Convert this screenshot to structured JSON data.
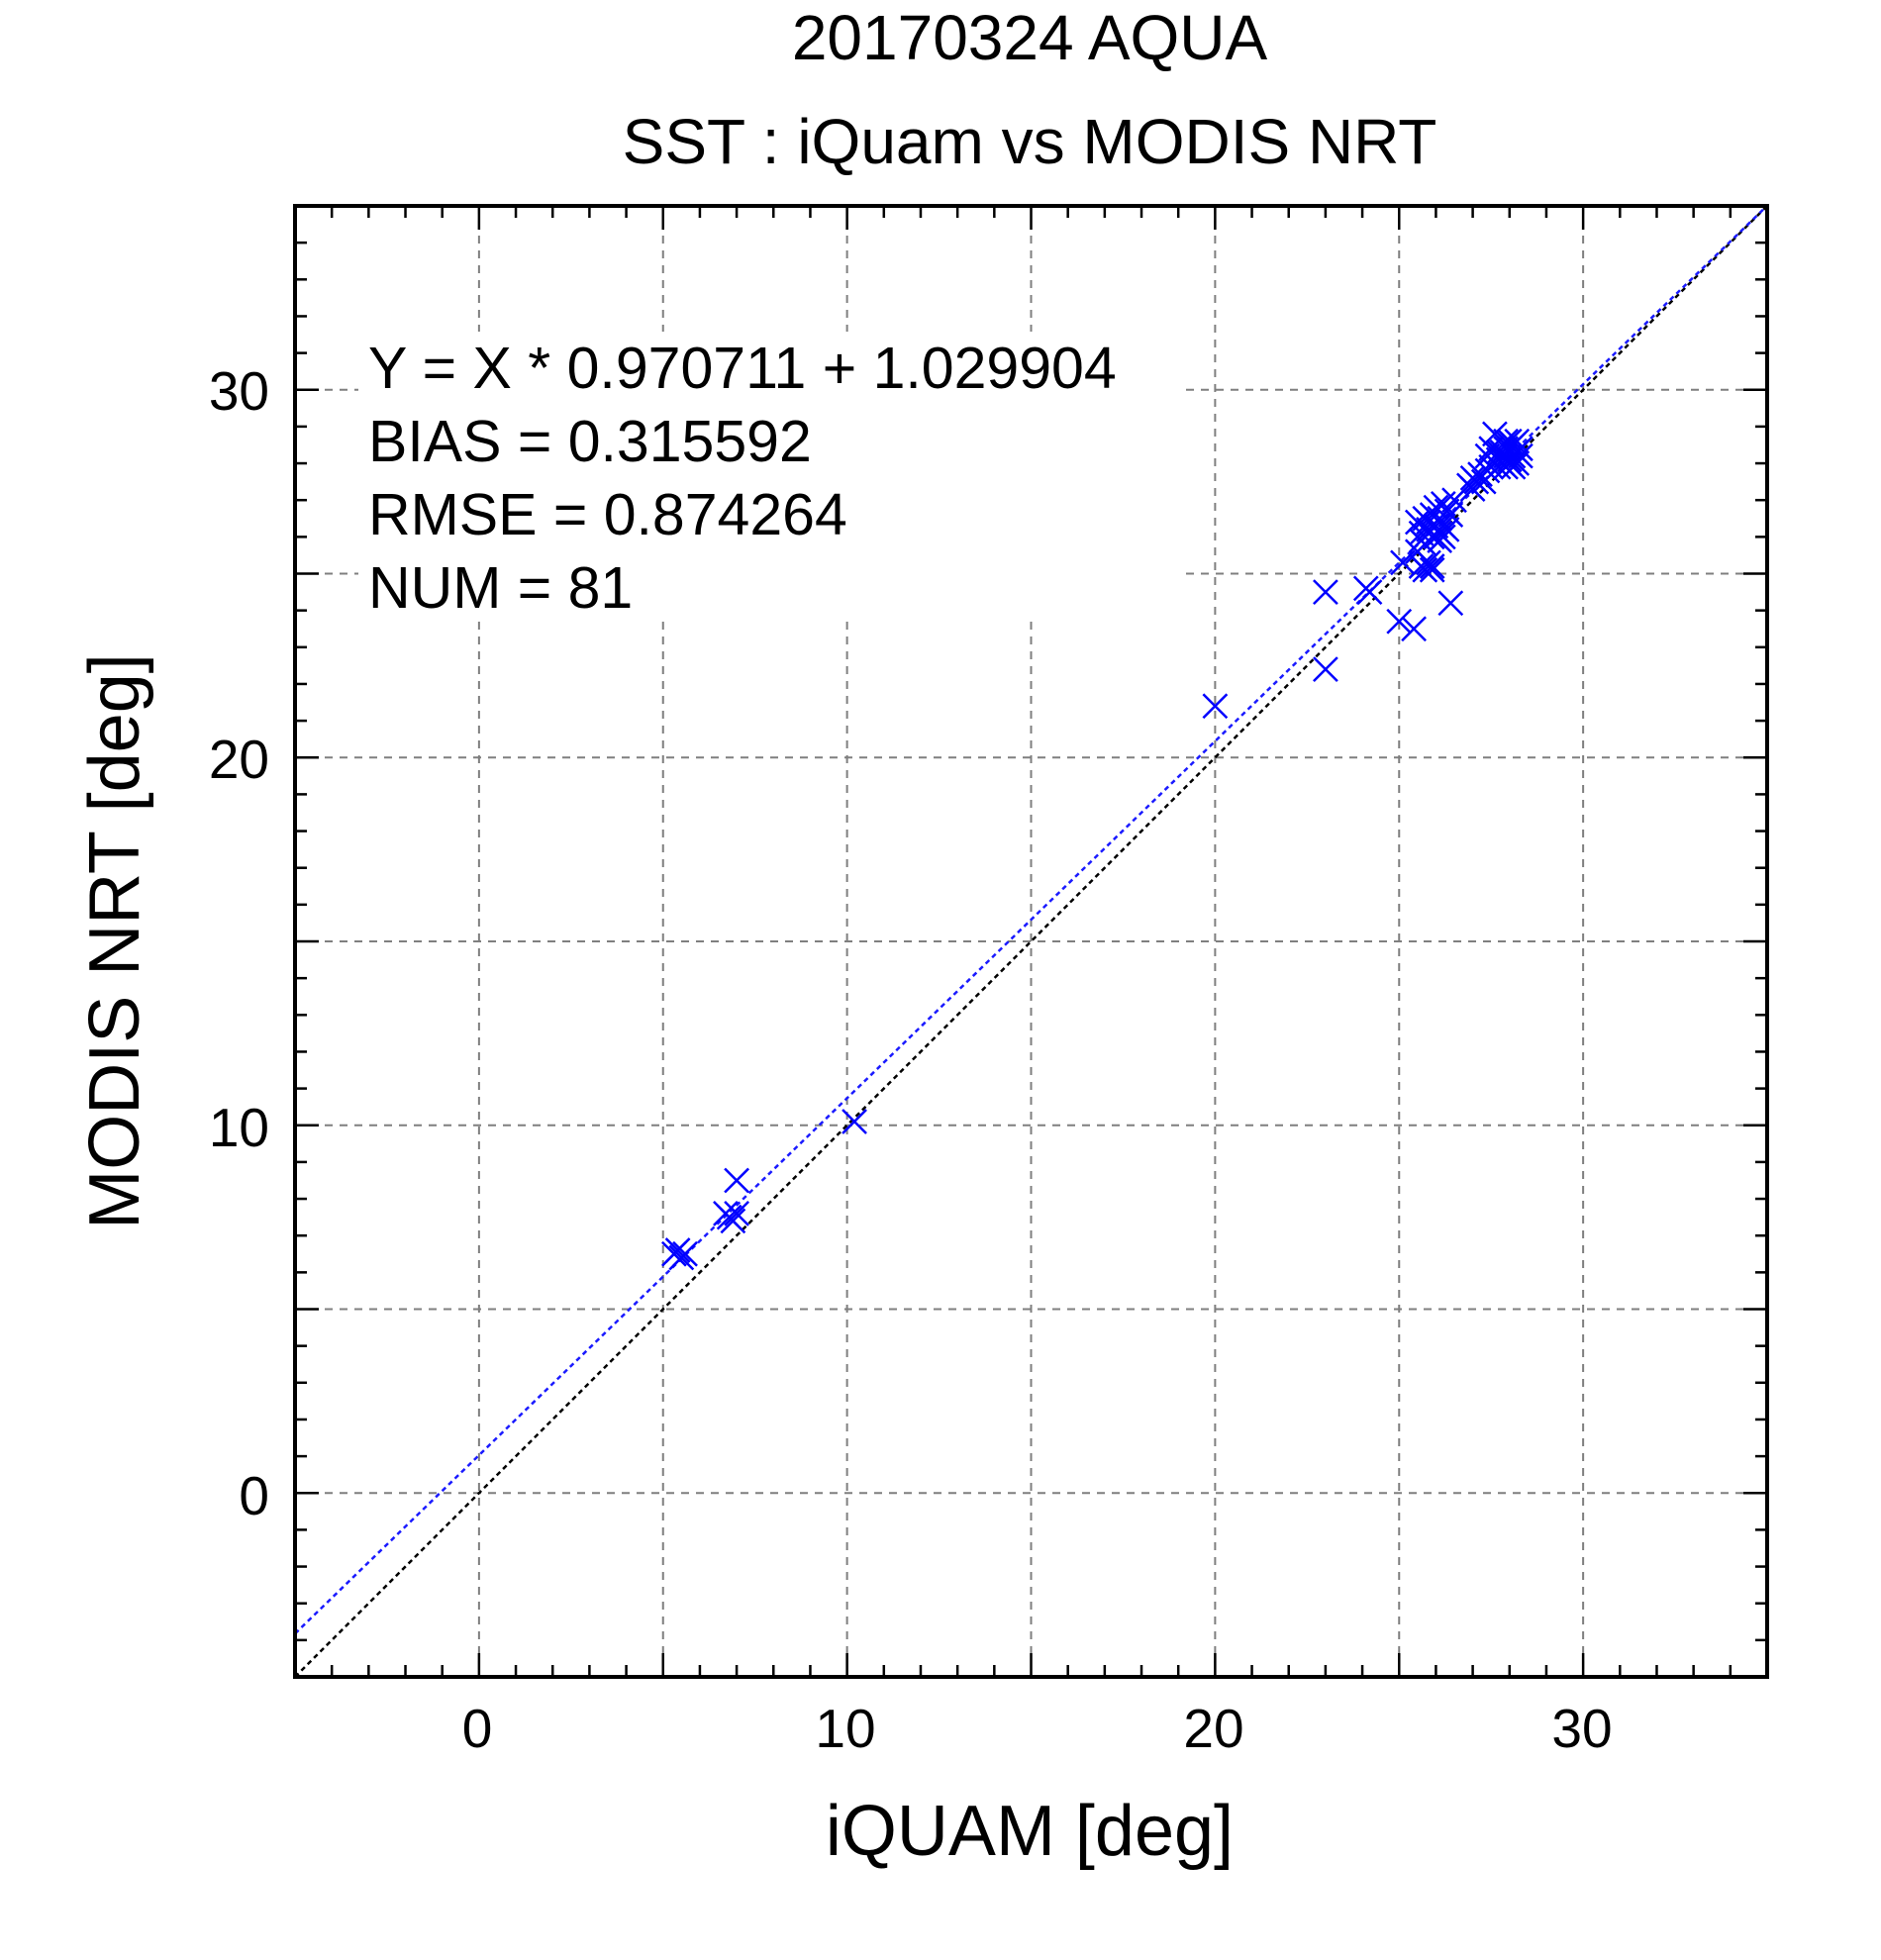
{
  "chart_data": {
    "type": "scatter",
    "title": "20170324 AQUA",
    "subtitle": "SST : iQuam vs MODIS NRT",
    "xlabel": "iQUAM [deg]",
    "ylabel": "MODIS NRT [deg]",
    "xlim": [
      -5,
      35
    ],
    "ylim": [
      -5,
      35
    ],
    "xticks": [
      "0",
      "10",
      "20",
      "30"
    ],
    "yticks": [
      "0",
      "10",
      "20",
      "30"
    ],
    "tick_values": [
      0,
      10,
      20,
      30
    ],
    "grid_values": [
      0,
      5,
      10,
      15,
      20,
      25,
      30
    ],
    "minor_tick_step": 1,
    "grid": true,
    "stats": {
      "fit_line": "Y = X * 0.970711 + 1.029904",
      "bias_line": "BIAS = 0.315592",
      "rmse_line": "RMSE = 0.874264",
      "num_line": "NUM = 81"
    },
    "fit": {
      "slope": 0.970711,
      "intercept": 1.029904,
      "color": "#1a1aff"
    },
    "identity": {
      "slope": 1,
      "intercept": 0,
      "color": "#000000"
    },
    "marker": {
      "shape": "x",
      "color": "#0000ff"
    },
    "points": [
      [
        5.3,
        6.5
      ],
      [
        5.4,
        6.6
      ],
      [
        5.5,
        6.4
      ],
      [
        5.6,
        6.5
      ],
      [
        6.7,
        7.6
      ],
      [
        6.8,
        7.5
      ],
      [
        6.9,
        7.4
      ],
      [
        7.0,
        7.6
      ],
      [
        7.0,
        8.5
      ],
      [
        10.2,
        10.1
      ],
      [
        20.0,
        21.4
      ],
      [
        23.0,
        24.5
      ],
      [
        23.0,
        22.4
      ],
      [
        24.1,
        24.6
      ],
      [
        24.2,
        24.5
      ],
      [
        25.0,
        23.7
      ],
      [
        25.1,
        25.3
      ],
      [
        25.4,
        23.5
      ],
      [
        25.5,
        25.6
      ],
      [
        25.5,
        26.4
      ],
      [
        25.6,
        25.2
      ],
      [
        25.6,
        26.1
      ],
      [
        25.7,
        25.1
      ],
      [
        25.7,
        26.5
      ],
      [
        25.8,
        25.3
      ],
      [
        25.8,
        26.2
      ],
      [
        25.9,
        25.1
      ],
      [
        25.9,
        26.0
      ],
      [
        25.9,
        26.6
      ],
      [
        26.0,
        26.3
      ],
      [
        26.0,
        26.8
      ],
      [
        26.1,
        26.1
      ],
      [
        26.1,
        26.5
      ],
      [
        26.2,
        26.3
      ],
      [
        26.2,
        26.9
      ],
      [
        26.3,
        26.2
      ],
      [
        26.4,
        26.6
      ],
      [
        26.4,
        24.2
      ],
      [
        26.5,
        27.0
      ],
      [
        26.1,
        25.9
      ],
      [
        26.9,
        27.4
      ],
      [
        27.0,
        27.6
      ],
      [
        27.1,
        27.5
      ],
      [
        27.2,
        27.7
      ],
      [
        27.3,
        27.5
      ],
      [
        27.4,
        27.8
      ],
      [
        27.5,
        27.9
      ],
      [
        27.5,
        28.4
      ],
      [
        27.6,
        28.0
      ],
      [
        27.6,
        28.8
      ],
      [
        27.7,
        28.1
      ],
      [
        27.7,
        27.9
      ],
      [
        27.8,
        28.3
      ],
      [
        27.8,
        28.0
      ],
      [
        27.9,
        28.6
      ],
      [
        27.9,
        28.2
      ],
      [
        27.9,
        27.9
      ],
      [
        28.0,
        28.4
      ],
      [
        28.0,
        28.1
      ],
      [
        28.1,
        28.5
      ],
      [
        28.1,
        27.9
      ],
      [
        28.2,
        28.3
      ],
      [
        28.2,
        28.6
      ],
      [
        28.3,
        28.2
      ],
      [
        28.3,
        28.4
      ],
      [
        28.0,
        28.0
      ],
      [
        27.8,
        28.2
      ],
      [
        28.1,
        28.2
      ],
      [
        27.9,
        28.4
      ],
      [
        28.2,
        28.0
      ],
      [
        27.7,
        28.3
      ],
      [
        28.0,
        28.6
      ],
      [
        25.8,
        26.4
      ],
      [
        26.0,
        26.0
      ],
      [
        25.7,
        25.8
      ],
      [
        26.3,
        26.7
      ],
      [
        25.9,
        25.2
      ],
      [
        25.6,
        25.9
      ],
      [
        26.2,
        26.0
      ],
      [
        27.4,
        28.2
      ],
      [
        27.0,
        27.3
      ]
    ]
  }
}
